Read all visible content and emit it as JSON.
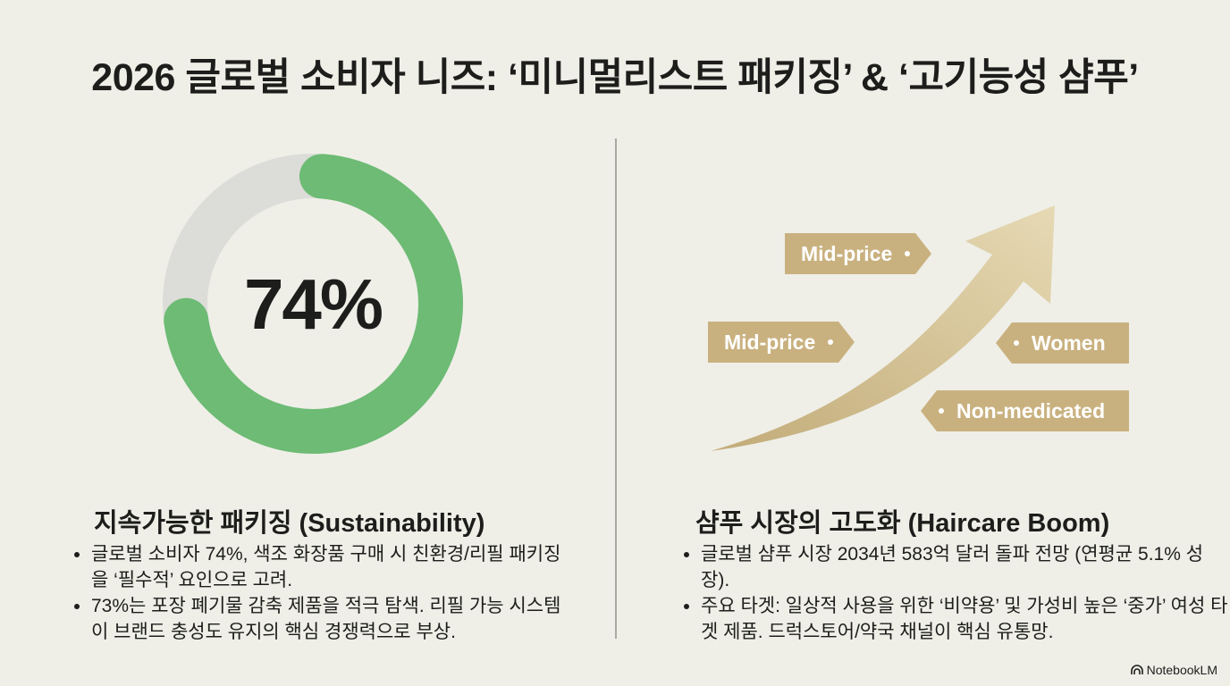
{
  "title": "2026 글로벌 소비자 니즈: ‘미니멀리스트 패키징’ & ‘고기능성 샴푸’",
  "donut": {
    "value_label": "74%",
    "value_percent": 74,
    "fill_color": "#6dbb74",
    "track_color": "#dcdcd8"
  },
  "tags": [
    {
      "label": "Mid-price"
    },
    {
      "label": "Mid-price"
    },
    {
      "label": "Women"
    },
    {
      "label": "Non-medicated"
    }
  ],
  "left": {
    "heading": "지속가능한 패키징 (Sustainability)",
    "bullets": [
      "글로벌 소비자 74%, 색조 화장품 구매 시 친환경/리필 패키징을 ‘필수적’ 요인으로 고려.",
      "73%는 포장 폐기물 감축 제품을 적극 탐색. 리필 가능 시스템이 브랜드 충성도 유지의 핵심 경쟁력으로 부상."
    ]
  },
  "right": {
    "heading": "샴푸 시장의 고도화 (Haircare Boom)",
    "bullets": [
      "글로벌 샴푸 시장 2034년 583억 달러 돌파 전망 (연평균 5.1% 성장).",
      "주요 타겟: 일상적 사용을 위한 ‘비약용’ 및 가성비 높은 ‘중가’ 여성 타겟 제품. 드럭스토어/약국 채널이 핵심 유통망."
    ]
  },
  "brand": "NotebookLM",
  "accent_gold": "#c9b17f"
}
